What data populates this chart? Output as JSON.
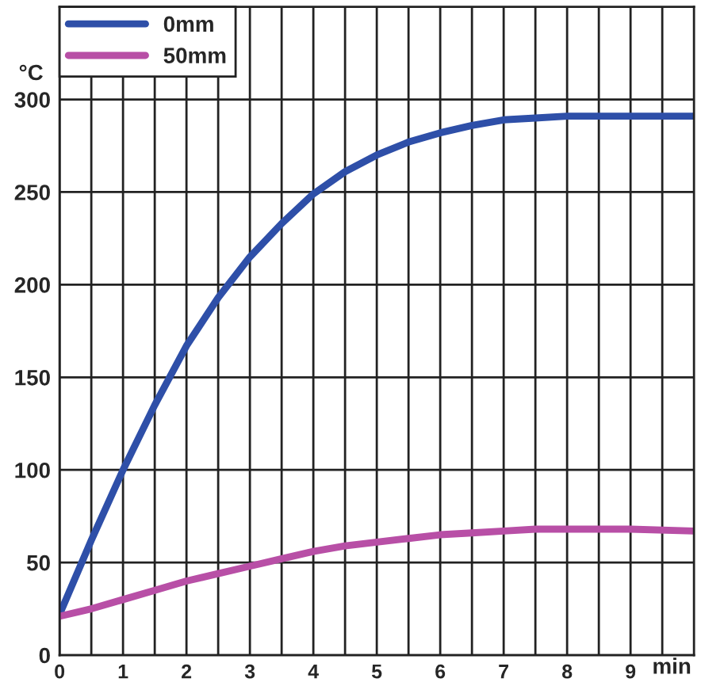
{
  "chart_data": {
    "type": "line",
    "xlabel": "min",
    "ylabel": "°C",
    "x": [
      0,
      0.5,
      1,
      1.5,
      2,
      2.5,
      3,
      3.5,
      4,
      4.5,
      5,
      5.5,
      6,
      6.5,
      7,
      7.5,
      8,
      8.5,
      9,
      10
    ],
    "series": [
      {
        "name": "0mm",
        "color": "#2e4fa8",
        "values": [
          22,
          62,
          100,
          135,
          167,
          193,
          215,
          233,
          249,
          261,
          270,
          277,
          282,
          286,
          289,
          290,
          291,
          291,
          291,
          291
        ]
      },
      {
        "name": "50mm",
        "color": "#b84fa6",
        "values": [
          21,
          25,
          30,
          35,
          40,
          44,
          48,
          52,
          56,
          59,
          61,
          63,
          65,
          66,
          67,
          68,
          68,
          68,
          68,
          67
        ]
      }
    ],
    "xlim": [
      0,
      10
    ],
    "xticks": [
      0,
      {
        "value": 0.5,
        "label": null
      },
      1,
      {
        "value": 1.5,
        "label": null
      },
      2,
      {
        "value": 2.5,
        "label": null
      },
      3,
      {
        "value": 3.5,
        "label": null
      },
      4,
      {
        "value": 4.5,
        "label": null
      },
      5,
      {
        "value": 5.5,
        "label": null
      },
      6,
      {
        "value": 6.5,
        "label": null
      },
      7,
      {
        "value": 7.5,
        "label": null
      },
      8,
      {
        "value": 8.5,
        "label": null
      },
      9,
      {
        "value": 9.5,
        "label": null
      }
    ],
    "ylim": [
      0,
      350
    ],
    "yticks": [
      0,
      50,
      100,
      150,
      200,
      250,
      300
    ],
    "grid": true,
    "legend": "top left",
    "marker": "none",
    "line_style": "solid"
  }
}
